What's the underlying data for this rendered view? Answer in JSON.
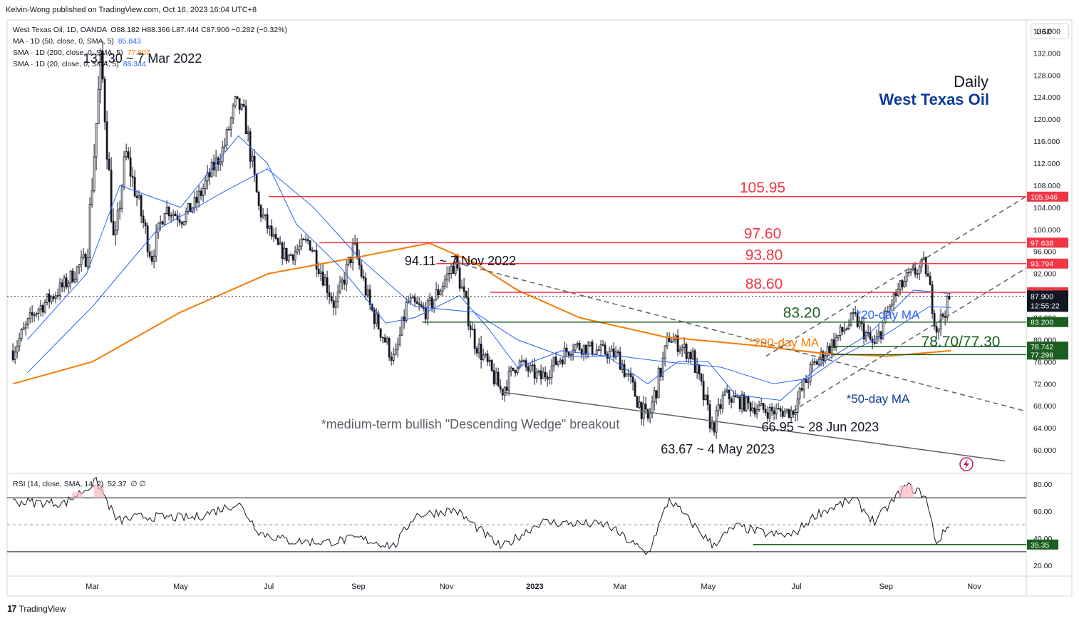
{
  "publisher": "Kelvin-Wong published on TradingView.com, Oct 16, 2023 16:04 UTC+8",
  "legend": {
    "symbol": "West Texas Oil, 1D, OANDA",
    "ohlc": "O88.182  H88.366  L87.444  C87.900  −0.282 (−0.32%)",
    "ma50_label": "MA · 1D (50, close, 0, SMA, 5)",
    "ma50_value": "85.843",
    "sma200_label": "SMA · 1D (200, close, 0, SMA, 5)",
    "sma200_value": "77.807",
    "sma20_label": "SMA · 1D (20, close, 0, SMA, 5)",
    "sma20_value": "88.344",
    "rsi_label": "RSI (14, close, SMA, 14, 2)",
    "rsi_value": "52.37",
    "rsi_extra": "∅  ∅"
  },
  "currency": "USD",
  "footer": "TradingView",
  "colors": {
    "resistance": "#f23645",
    "support": "#1b5e20",
    "ma20": "#2962ff",
    "ma200": "#f57c00",
    "trend": "#5d606b",
    "annotation_blue": "#0d3a9b",
    "annotation_orange": "#f57c00"
  },
  "chart_data": {
    "type": "candlestick",
    "title": "Daily",
    "subtitle": "West Texas Oil",
    "y_axis": {
      "range": [
        56,
        138
      ],
      "ticks": [
        "136.000",
        "132.000",
        "128.000",
        "124.000",
        "120.000",
        "116.000",
        "112.000",
        "108.000",
        "104.000",
        "100.000",
        "96.000",
        "92.000",
        "88.000",
        "84.000",
        "80.000",
        "76.000",
        "72.000",
        "68.000",
        "64.000",
        "60.000"
      ]
    },
    "x_axis": {
      "ticks": [
        "Mar",
        "May",
        "Jul",
        "Sep",
        "Nov",
        "2023",
        "Mar",
        "May",
        "Jul",
        "Sep",
        "Nov"
      ]
    },
    "price_path": [
      [
        "2022-01-05",
        78
      ],
      [
        "2022-01-20",
        85
      ],
      [
        "2022-02-10",
        90
      ],
      [
        "2022-02-25",
        95
      ],
      [
        "2022-03-07",
        131.3
      ],
      [
        "2022-03-16",
        96
      ],
      [
        "2022-03-24",
        114
      ],
      [
        "2022-04-11",
        95
      ],
      [
        "2022-04-20",
        104
      ],
      [
        "2022-05-02",
        102
      ],
      [
        "2022-05-12",
        105
      ],
      [
        "2022-05-31",
        115
      ],
      [
        "2022-06-08",
        123
      ],
      [
        "2022-06-14",
        121
      ],
      [
        "2022-06-24",
        104
      ],
      [
        "2022-07-06",
        97
      ],
      [
        "2022-07-14",
        95
      ],
      [
        "2022-07-29",
        98
      ],
      [
        "2022-08-16",
        86
      ],
      [
        "2022-08-29",
        97
      ],
      [
        "2022-09-09",
        86
      ],
      [
        "2022-09-26",
        76
      ],
      [
        "2022-10-05",
        87
      ],
      [
        "2022-10-18",
        85
      ],
      [
        "2022-11-07",
        94.11
      ],
      [
        "2022-11-20",
        80
      ],
      [
        "2022-12-09",
        70.5
      ],
      [
        "2022-12-20",
        76
      ],
      [
        "2023-01-05",
        73
      ],
      [
        "2023-01-27",
        79
      ],
      [
        "2023-02-15",
        78
      ],
      [
        "2023-02-28",
        77
      ],
      [
        "2023-03-20",
        65
      ],
      [
        "2023-04-04",
        80.5
      ],
      [
        "2023-04-20",
        77
      ],
      [
        "2023-05-04",
        63.67
      ],
      [
        "2023-05-12",
        70
      ],
      [
        "2023-05-30",
        68
      ],
      [
        "2023-06-12",
        67
      ],
      [
        "2023-06-28",
        66.95
      ],
      [
        "2023-07-12",
        75
      ],
      [
        "2023-07-28",
        80
      ],
      [
        "2023-08-10",
        84
      ],
      [
        "2023-08-24",
        78.7
      ],
      [
        "2023-09-05",
        87
      ],
      [
        "2023-09-15",
        91
      ],
      [
        "2023-09-28",
        93.8
      ],
      [
        "2023-10-06",
        82
      ],
      [
        "2023-10-16",
        87.9
      ]
    ],
    "sma20": [
      [
        "2022-01-15",
        80
      ],
      [
        "2022-02-25",
        92
      ],
      [
        "2022-03-20",
        108
      ],
      [
        "2022-05-01",
        104
      ],
      [
        "2022-06-10",
        117
      ],
      [
        "2022-06-30",
        112
      ],
      [
        "2022-07-20",
        101
      ],
      [
        "2022-08-20",
        93
      ],
      [
        "2022-09-20",
        83
      ],
      [
        "2022-10-10",
        84
      ],
      [
        "2022-11-10",
        88
      ],
      [
        "2022-11-30",
        82
      ],
      [
        "2022-12-20",
        75
      ],
      [
        "2023-01-20",
        78
      ],
      [
        "2023-02-20",
        77
      ],
      [
        "2023-03-20",
        72
      ],
      [
        "2023-04-10",
        76
      ],
      [
        "2023-05-01",
        76
      ],
      [
        "2023-05-20",
        70
      ],
      [
        "2023-06-20",
        69
      ],
      [
        "2023-07-20",
        76
      ],
      [
        "2023-08-20",
        81
      ],
      [
        "2023-09-20",
        89
      ],
      [
        "2023-10-16",
        88.344
      ]
    ],
    "sma50": [
      [
        "2022-01-15",
        74
      ],
      [
        "2022-03-01",
        86
      ],
      [
        "2022-04-15",
        100
      ],
      [
        "2022-06-01",
        107
      ],
      [
        "2022-06-30",
        111
      ],
      [
        "2022-08-01",
        104
      ],
      [
        "2022-09-01",
        95
      ],
      [
        "2022-10-10",
        86
      ],
      [
        "2022-11-20",
        85
      ],
      [
        "2022-12-20",
        80
      ],
      [
        "2023-01-20",
        77
      ],
      [
        "2023-03-01",
        77
      ],
      [
        "2023-04-01",
        76
      ],
      [
        "2023-05-10",
        75
      ],
      [
        "2023-06-15",
        72
      ],
      [
        "2023-07-10",
        73
      ],
      [
        "2023-08-01",
        77
      ],
      [
        "2023-09-01",
        81
      ],
      [
        "2023-10-01",
        86
      ],
      [
        "2023-10-16",
        85.843
      ]
    ],
    "sma200": [
      [
        "2022-01-05",
        72
      ],
      [
        "2022-03-01",
        76
      ],
      [
        "2022-05-01",
        85
      ],
      [
        "2022-07-01",
        92
      ],
      [
        "2022-09-01",
        95
      ],
      [
        "2022-10-20",
        97.5
      ],
      [
        "2022-11-20",
        94
      ],
      [
        "2022-12-20",
        89
      ],
      [
        "2023-02-01",
        84
      ],
      [
        "2023-04-01",
        80.5
      ],
      [
        "2023-06-01",
        79
      ],
      [
        "2023-07-20",
        77.5
      ],
      [
        "2023-09-01",
        77
      ],
      [
        "2023-10-16",
        78
      ]
    ],
    "rsi_path": [
      [
        "2022-01-05",
        67
      ],
      [
        "2022-02-10",
        66
      ],
      [
        "2022-03-04",
        82
      ],
      [
        "2022-03-18",
        53
      ],
      [
        "2022-04-05",
        56
      ],
      [
        "2022-05-10",
        55
      ],
      [
        "2022-06-10",
        66
      ],
      [
        "2022-06-25",
        44
      ],
      [
        "2022-07-15",
        38
      ],
      [
        "2022-08-10",
        37
      ],
      [
        "2022-09-01",
        40
      ],
      [
        "2022-09-26",
        34
      ],
      [
        "2022-10-10",
        57
      ],
      [
        "2022-11-07",
        61
      ],
      [
        "2022-12-09",
        33
      ],
      [
        "2023-01-05",
        52
      ],
      [
        "2023-02-20",
        50
      ],
      [
        "2023-03-20",
        28
      ],
      [
        "2023-04-04",
        69
      ],
      [
        "2023-05-04",
        35
      ],
      [
        "2023-05-20",
        49
      ],
      [
        "2023-06-12",
        43
      ],
      [
        "2023-06-28",
        42
      ],
      [
        "2023-07-15",
        58
      ],
      [
        "2023-08-10",
        69
      ],
      [
        "2023-08-24",
        52
      ],
      [
        "2023-09-15",
        79
      ],
      [
        "2023-09-28",
        72
      ],
      [
        "2023-10-06",
        36
      ],
      [
        "2023-10-16",
        52.37
      ]
    ],
    "rsi_axis": {
      "range": [
        12,
        88
      ],
      "ticks": [
        "80.00",
        "60.00",
        "40.00",
        "20.00"
      ],
      "overbought": 70,
      "oversold": 30,
      "mid": 50
    },
    "levels": [
      {
        "value": 105.95,
        "label": "105.95",
        "axis_label": "105.946",
        "kind": "resistance"
      },
      {
        "value": 97.6,
        "label": "97.60",
        "axis_label": "97.638",
        "kind": "resistance"
      },
      {
        "value": 93.8,
        "label": "93.80",
        "axis_label": "93.794",
        "kind": "resistance"
      },
      {
        "value": 88.6,
        "label": "88.60",
        "axis_label": "88.600",
        "kind": "resistance"
      },
      {
        "value": 83.2,
        "label": "83.20",
        "axis_label": "83.200",
        "kind": "support"
      },
      {
        "value": 78.74,
        "label": "78.70/77.30",
        "axis_label": "78.742",
        "kind": "support"
      },
      {
        "value": 77.3,
        "label": "",
        "axis_label": "77.298",
        "kind": "support"
      }
    ],
    "current": {
      "value": 87.9,
      "label": "87.900",
      "countdown": "12:55:22"
    },
    "rsi_support": {
      "value": 35.35,
      "label": "35.35"
    },
    "annotations": [
      "131.30 ~ 7 Mar 2022",
      "94.11 ~ 7 Nov 2022",
      "63.67 ~ 4 May 2023",
      "66.95 ~ 28 Jun 2023",
      "*medium-term bullish \"Descending Wedge\" breakout",
      "*20-day MA",
      "*200-day MA",
      "*50-day MA"
    ]
  }
}
